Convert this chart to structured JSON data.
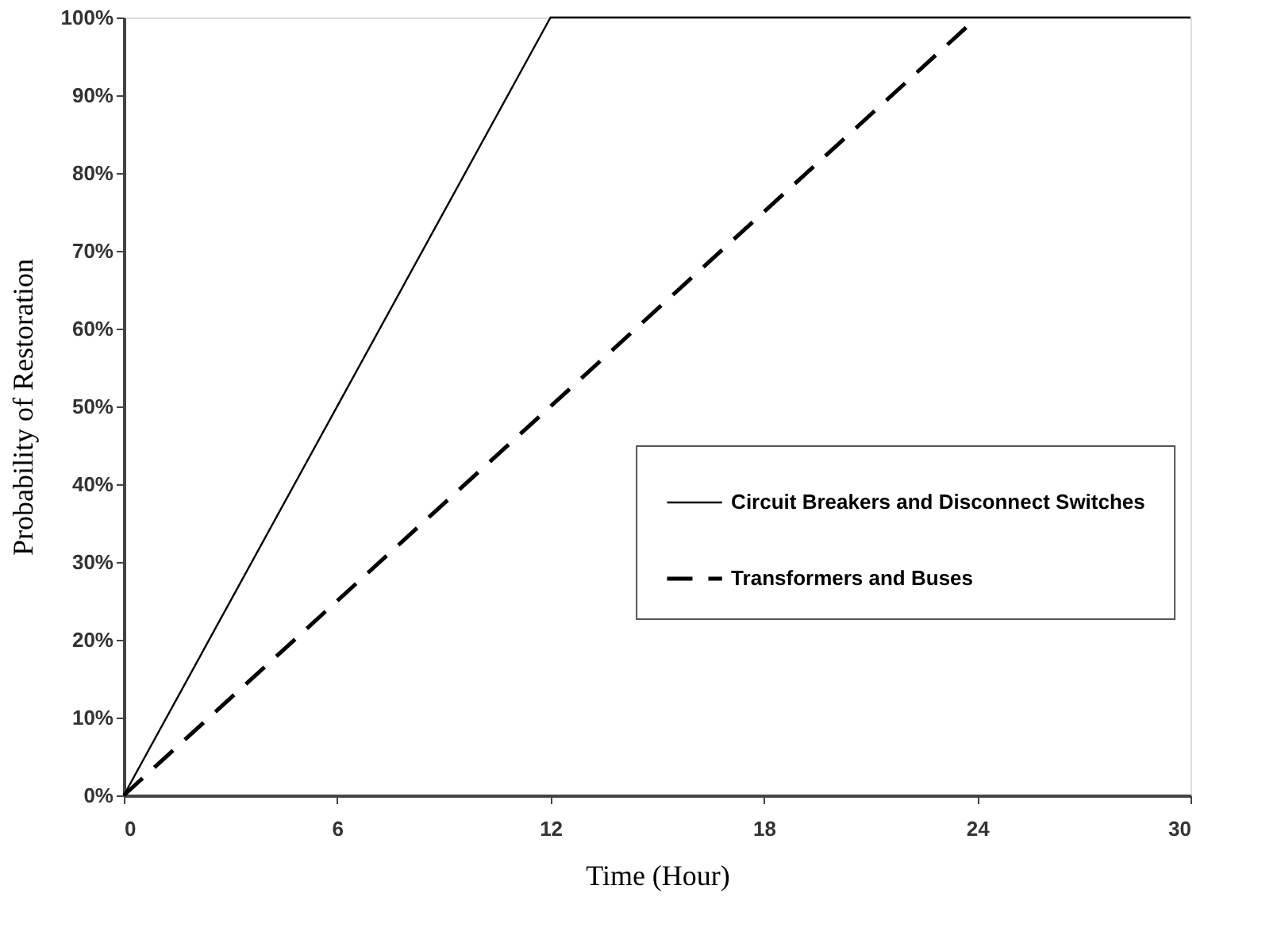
{
  "chart_data": {
    "type": "line",
    "xlabel": "Time (Hour)",
    "ylabel": "Probability of Restoration",
    "xlim": [
      0,
      30
    ],
    "xticks": [
      0,
      6,
      12,
      18,
      24,
      30
    ],
    "ylim": [
      0,
      100
    ],
    "yticks": [
      {
        "value": 0,
        "label": "0%"
      },
      {
        "value": 10,
        "label": "10%"
      },
      {
        "value": 20,
        "label": "20%"
      },
      {
        "value": 30,
        "label": "30%"
      },
      {
        "value": 40,
        "label": "40%"
      },
      {
        "value": 50,
        "label": "50%"
      },
      {
        "value": 60,
        "label": "60%"
      },
      {
        "value": 70,
        "label": "70%"
      },
      {
        "value": 80,
        "label": "80%"
      },
      {
        "value": 90,
        "label": "90%"
      },
      {
        "value": 100,
        "label": "100%"
      }
    ],
    "series": [
      {
        "name": "Circuit Breakers and Disconnect Switches",
        "color": "#000000",
        "line_style": "solid",
        "x": [
          0,
          12,
          30
        ],
        "values": [
          0,
          100,
          100
        ]
      },
      {
        "name": "Transformers and Buses",
        "color": "#000000",
        "line_style": "dashed",
        "x": [
          0,
          24
        ],
        "values": [
          0,
          100
        ]
      }
    ],
    "grid": false,
    "legend": "right",
    "marker": "none"
  }
}
